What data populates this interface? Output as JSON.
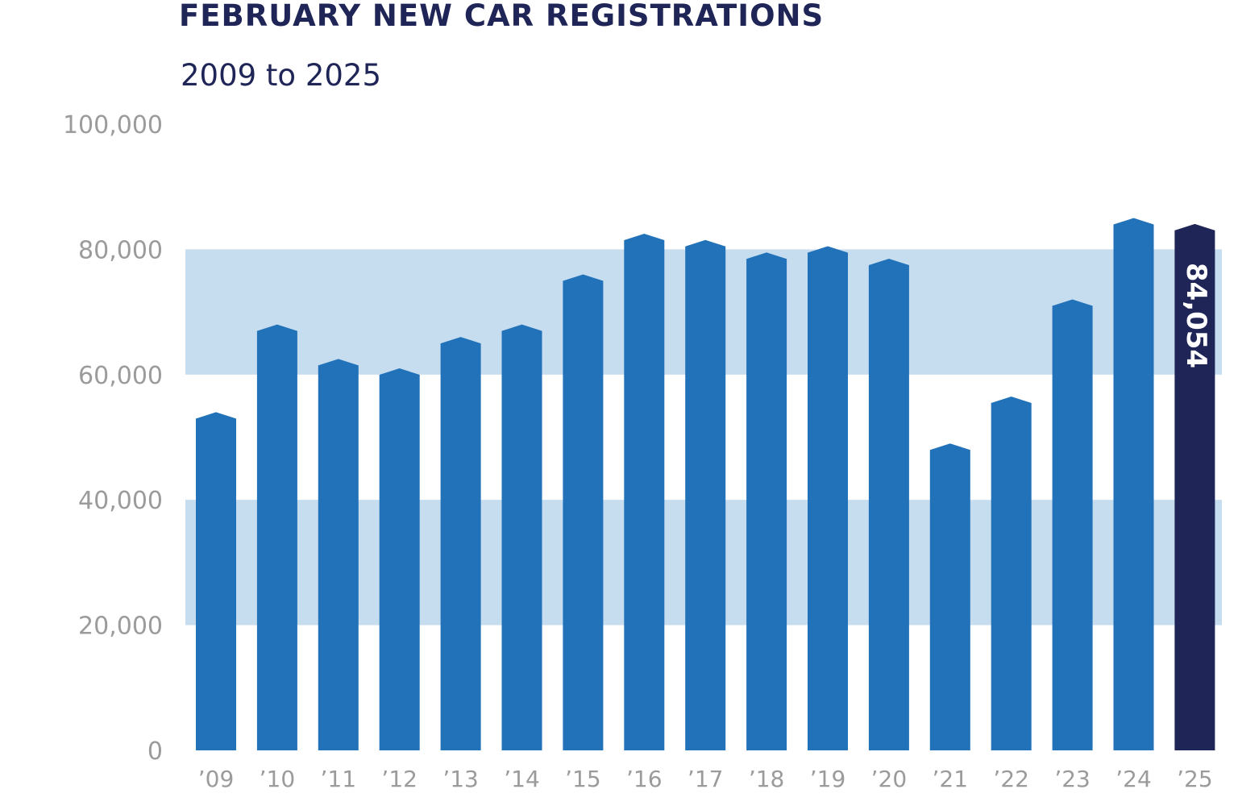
{
  "header": {
    "title": "FEBRUARY NEW CAR REGISTRATIONS",
    "subtitle": "2009 to 2025"
  },
  "colors": {
    "title": "#1f2556",
    "bar": "#2272b9",
    "highlight_bar": "#1f2556",
    "band": "#c6dcef",
    "tick_text": "#9b9b9b",
    "label_text": "#ffffff"
  },
  "chart_data": {
    "type": "bar",
    "title": "FEBRUARY NEW CAR REGISTRATIONS",
    "subtitle": "2009 to 2025",
    "xlabel": "",
    "ylabel": "",
    "ylim": [
      0,
      100000
    ],
    "yticks": [
      0,
      20000,
      40000,
      60000,
      80000,
      100000
    ],
    "ytick_labels": [
      "0",
      "20,000",
      "40,000",
      "60,000",
      "80,000",
      "100,000"
    ],
    "grid": "alternating horizontal bands (20,000–40,000 and 60,000–80,000)",
    "legend": "none",
    "categories": [
      "’09",
      "’10",
      "’11",
      "’12",
      "’13",
      "’14",
      "’15",
      "’16",
      "’17",
      "’18",
      "’19",
      "’20",
      "’21",
      "’22",
      "’23",
      "’24",
      "’25"
    ],
    "values": [
      54000,
      68000,
      62500,
      61000,
      66000,
      68000,
      76000,
      82500,
      81500,
      79500,
      80500,
      78500,
      49000,
      56500,
      72000,
      85000,
      84054
    ],
    "highlight_index": 16,
    "data_labels": [
      {
        "index": 16,
        "text": "84,054"
      }
    ]
  }
}
